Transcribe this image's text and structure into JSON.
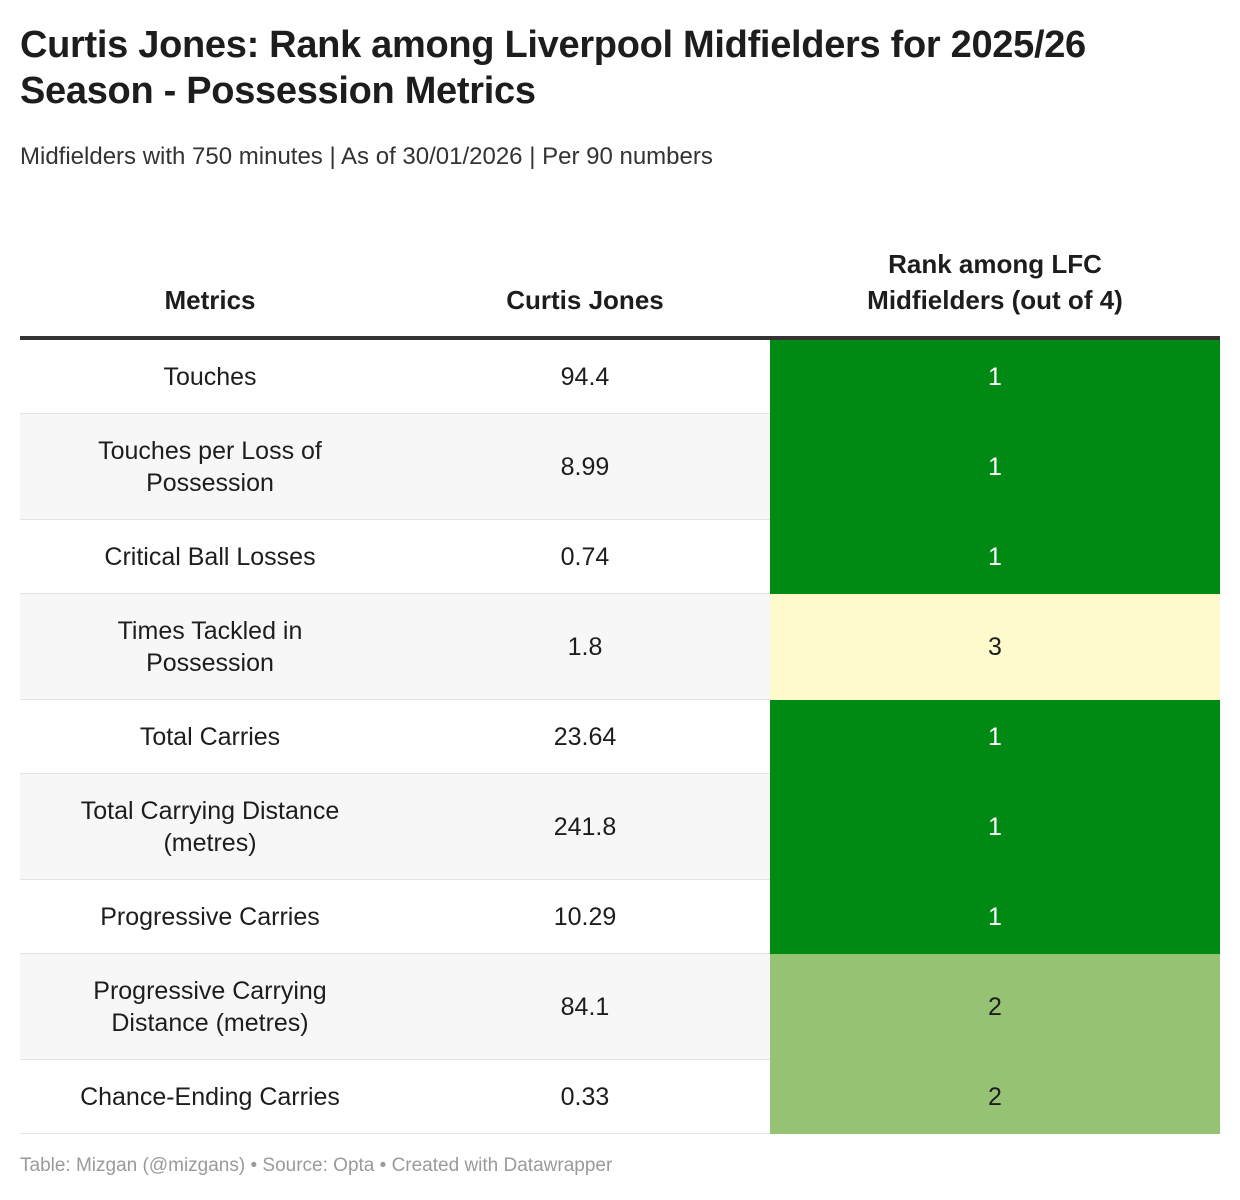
{
  "title": "Curtis Jones: Rank among Liverpool Midfielders for 2025/26 Season - Possession Metrics",
  "subtitle": "Midfielders with 750 minutes | As of 30/01/2026 | Per 90 numbers",
  "footer": "Table: Mizgan (@mizgans) • Source: Opta • Created with Datawrapper",
  "colors": {
    "rank_1": "#008a13",
    "rank_2": "#96c373",
    "rank_3": "#fffacc",
    "text_dark": "#1d1d1d",
    "text_light": "#ffffff"
  },
  "chart_data": {
    "type": "table",
    "columns": [
      "Metrics",
      "Curtis Jones",
      "Rank among LFC Midfielders (out of 4)"
    ],
    "rows": [
      {
        "metric": "Touches",
        "value": "94.4",
        "rank": 1
      },
      {
        "metric": "Touches per Loss of Possession",
        "value": "8.99",
        "rank": 1
      },
      {
        "metric": "Critical Ball Losses",
        "value": "0.74",
        "rank": 1
      },
      {
        "metric": "Times Tackled in Possession",
        "value": "1.8",
        "rank": 3
      },
      {
        "metric": "Total Carries",
        "value": "23.64",
        "rank": 1
      },
      {
        "metric": "Total Carrying Distance (metres)",
        "value": "241.8",
        "rank": 1
      },
      {
        "metric": "Progressive Carries",
        "value": "10.29",
        "rank": 1
      },
      {
        "metric": "Progressive Carrying Distance (metres)",
        "value": "84.1",
        "rank": 2
      },
      {
        "metric": "Chance-Ending Carries",
        "value": "0.33",
        "rank": 2
      }
    ]
  }
}
